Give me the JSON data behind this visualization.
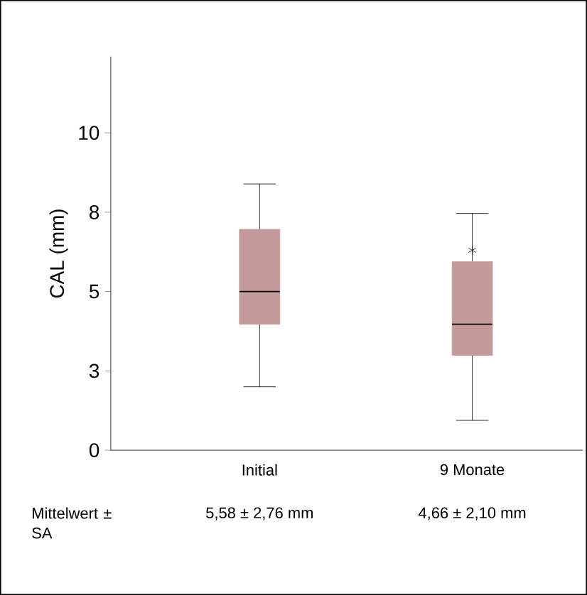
{
  "chart_data": {
    "type": "box",
    "ylabel": "CAL (mm)",
    "categories": [
      "Initial",
      "9 Monate"
    ],
    "boxes": [
      {
        "low": 2.0,
        "q1": 3.97,
        "median": 5.0,
        "q3": 6.96,
        "high": 8.39
      },
      {
        "low": 0.94,
        "q1": 2.99,
        "median": 3.97,
        "q3": 5.94,
        "high": 7.46,
        "outliers": [
          6.3
        ]
      }
    ],
    "color": "#c49a9a",
    "ylim": [
      0,
      12.4
    ],
    "yticks": [
      {
        "value": 0,
        "label": "0"
      },
      {
        "value": 2.5,
        "label": "3"
      },
      {
        "value": 5,
        "label": "5"
      },
      {
        "value": 7.5,
        "label": "8"
      },
      {
        "value": 10,
        "label": "10"
      }
    ],
    "annotations": [
      "Mittelwert ± SA",
      "5,58 ± 2,76 mm",
      "4,66 ± 2,10 mm"
    ]
  }
}
